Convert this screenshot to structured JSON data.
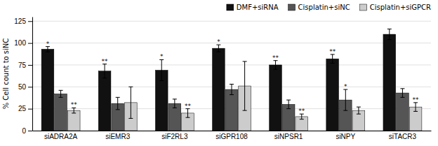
{
  "chart_data": {
    "type": "bar",
    "categories": [
      "siADRA2A",
      "siEMR3",
      "siF2RL3",
      "siGPR108",
      "siNPSR1",
      "siNPY",
      "siTACR3"
    ],
    "series": [
      {
        "name": "DMF+siRNA",
        "color": "#111111",
        "values": [
          93,
          68,
          69,
          94,
          75,
          82,
          110
        ],
        "errors": [
          3,
          8,
          12,
          4,
          5,
          5,
          6
        ],
        "stars": [
          "*",
          "**",
          "*",
          "*",
          "**",
          "**",
          null
        ]
      },
      {
        "name": "Cisplatin+siNC",
        "color": "#555555",
        "values": [
          42,
          31,
          31,
          47,
          30,
          35,
          43
        ],
        "errors": [
          4,
          7,
          5,
          6,
          5,
          12,
          5
        ],
        "stars": [
          null,
          null,
          null,
          null,
          null,
          "*",
          null
        ]
      },
      {
        "name": "Cisplatin+siGPCR",
        "color": "#cccccc",
        "values": [
          23,
          32,
          20,
          51,
          16,
          23,
          27
        ],
        "errors": [
          3,
          18,
          5,
          28,
          3,
          4,
          5
        ],
        "stars": [
          "**",
          null,
          "**",
          null,
          "**",
          null,
          "**"
        ]
      }
    ],
    "ylabel": "% Cell count to siNC",
    "ylim": [
      0,
      130
    ],
    "yticks": [
      0,
      25,
      50,
      75,
      100,
      125
    ],
    "grid": true,
    "legend": "upper right"
  }
}
